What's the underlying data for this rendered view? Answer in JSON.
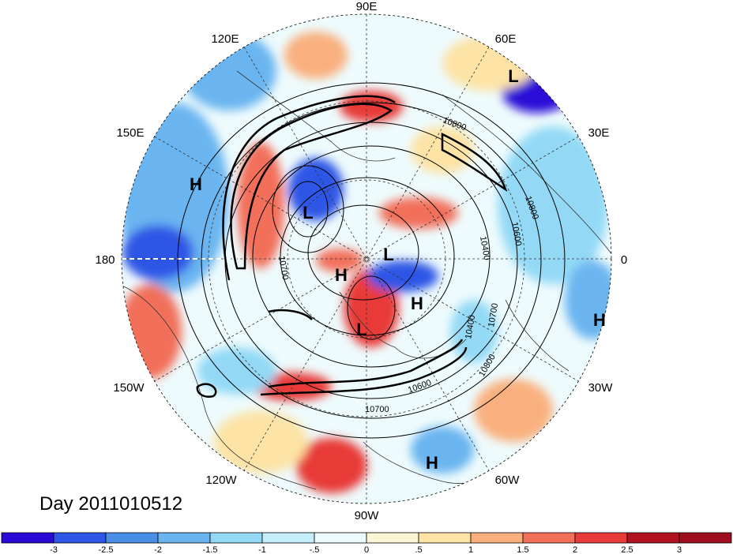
{
  "title": "Day 2011010512",
  "longitude_labels": {
    "n": "90E",
    "nnw": "120E",
    "nne": "60E",
    "wnw": "150E",
    "ene": "30E",
    "w": "180",
    "e": "0",
    "wsw": "150W",
    "ese": "30W",
    "ssw": "120W",
    "sse": "60W",
    "s": "90W"
  },
  "pressure_systems": [
    {
      "label": "L"
    },
    {
      "label": "H"
    },
    {
      "label": "L"
    },
    {
      "label": "L"
    },
    {
      "label": "H"
    },
    {
      "label": "H"
    },
    {
      "label": "L"
    },
    {
      "label": "H"
    },
    {
      "label": "H"
    }
  ],
  "contour_labels": [
    "10800",
    "10800",
    "10600",
    "10400",
    "10700",
    "10800",
    "10600",
    "10700",
    "10400",
    "10700"
  ],
  "colorbar": {
    "ticks": [
      "-3",
      "-2.5",
      "-2",
      "-1.5",
      "-1",
      "-.5",
      "0",
      ".5",
      "1",
      "1.5",
      "2",
      "2.5",
      "3"
    ],
    "colors": [
      "#2a08d6",
      "#2d56e6",
      "#4a8fe6",
      "#6ab5f0",
      "#93d9f6",
      "#c6eefa",
      "#eefbfd",
      "#fdf6d6",
      "#fde3a5",
      "#f9b07e",
      "#f2705a",
      "#e83a38",
      "#b01220",
      "#9e0e1e"
    ]
  }
}
